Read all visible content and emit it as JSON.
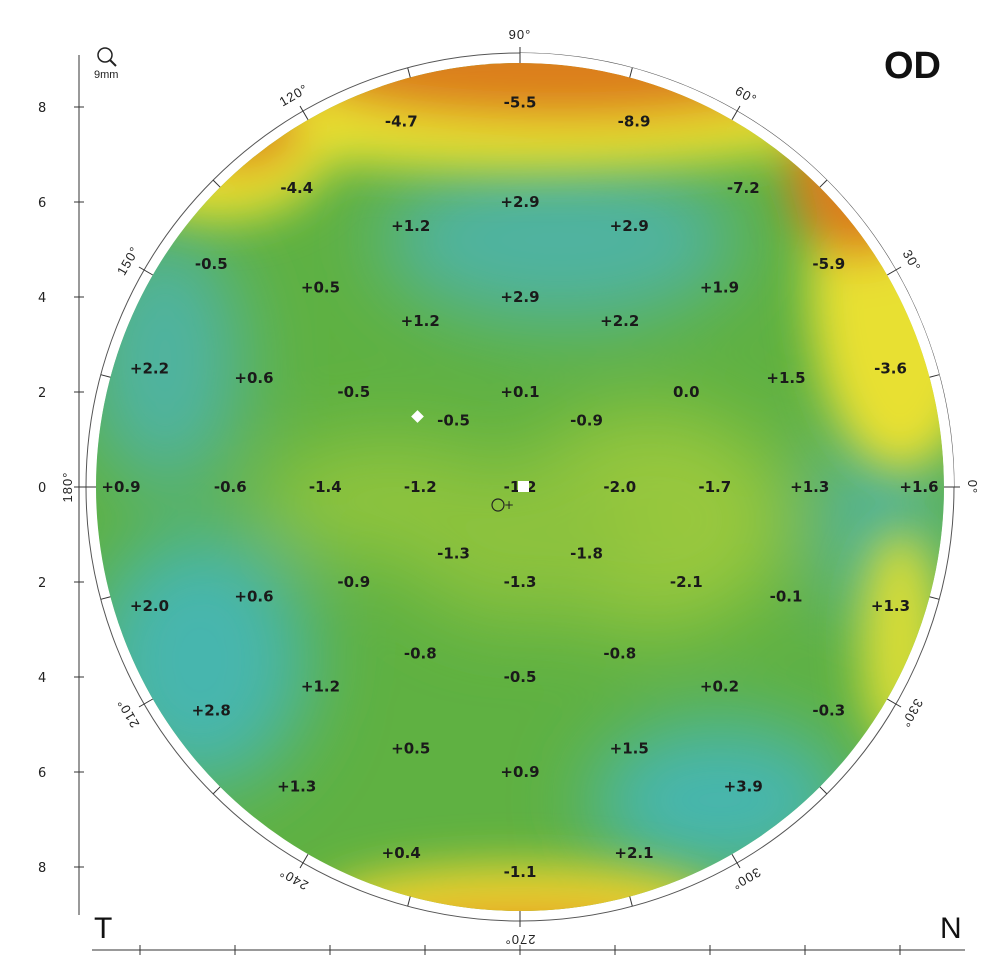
{
  "eye_label": "OD",
  "temporal_label": "T",
  "nasal_label": "N",
  "scale_label": "9mm",
  "degree_labels": [
    "0°",
    "30°",
    "60°",
    "90°",
    "120°",
    "150°",
    "180°",
    "210°",
    "240°",
    "270°",
    "300°",
    "330°"
  ],
  "y_ticks": [
    "8",
    "6",
    "4",
    "2",
    "0",
    "2",
    "4",
    "6",
    "8"
  ],
  "colors": {
    "background": "#ffffff",
    "base_green": "#5fb142",
    "cool_teal": "#4fb8a8",
    "warm_yellow": "#e8e033",
    "hot_orange": "#d9741a",
    "light_green": "#98c83c"
  },
  "chart_data": {
    "type": "heatmap",
    "title": "OD",
    "xlabel": "",
    "ylabel": "",
    "xlim": [
      -9,
      9
    ],
    "ylim": [
      -9,
      9
    ],
    "grid": false,
    "points": [
      {
        "x": 0,
        "y": 8.1,
        "value": "-5.5"
      },
      {
        "x": -2.5,
        "y": 7.7,
        "value": "-4.7"
      },
      {
        "x": 2.4,
        "y": 7.7,
        "value": "-8.9"
      },
      {
        "x": -4.7,
        "y": 6.3,
        "value": "-4.4"
      },
      {
        "x": 4.7,
        "y": 6.3,
        "value": "-7.2"
      },
      {
        "x": -2.3,
        "y": 5.5,
        "value": "+1.2"
      },
      {
        "x": 0,
        "y": 6.0,
        "value": "+2.9"
      },
      {
        "x": 2.3,
        "y": 5.5,
        "value": "+2.9"
      },
      {
        "x": -6.5,
        "y": 4.7,
        "value": "-0.5"
      },
      {
        "x": 6.5,
        "y": 4.7,
        "value": "-5.9"
      },
      {
        "x": -4.2,
        "y": 4.2,
        "value": "+0.5"
      },
      {
        "x": 4.2,
        "y": 4.2,
        "value": "+1.9"
      },
      {
        "x": 0,
        "y": 4.0,
        "value": "+2.9"
      },
      {
        "x": -2.1,
        "y": 3.5,
        "value": "+1.2"
      },
      {
        "x": 2.1,
        "y": 3.5,
        "value": "+2.2"
      },
      {
        "x": -7.8,
        "y": 2.5,
        "value": "+2.2"
      },
      {
        "x": 7.8,
        "y": 2.5,
        "value": "-3.6"
      },
      {
        "x": -5.6,
        "y": 2.3,
        "value": "+0.6"
      },
      {
        "x": 5.6,
        "y": 2.3,
        "value": "+1.5"
      },
      {
        "x": -3.5,
        "y": 2.0,
        "value": "-0.5"
      },
      {
        "x": 0,
        "y": 2.0,
        "value": "+0.1"
      },
      {
        "x": 3.5,
        "y": 2.0,
        "value": "0.0"
      },
      {
        "x": -1.4,
        "y": 1.4,
        "value": "-0.5"
      },
      {
        "x": 1.4,
        "y": 1.4,
        "value": "-0.9"
      },
      {
        "x": -8.4,
        "y": 0,
        "value": "+0.9"
      },
      {
        "x": -6.1,
        "y": 0,
        "value": "-0.6"
      },
      {
        "x": -4.1,
        "y": 0,
        "value": "-1.4"
      },
      {
        "x": -2.1,
        "y": 0,
        "value": "-1.2"
      },
      {
        "x": 0,
        "y": 0,
        "value": "-1.2"
      },
      {
        "x": 2.1,
        "y": 0,
        "value": "-2.0"
      },
      {
        "x": 4.1,
        "y": 0,
        "value": "-1.7"
      },
      {
        "x": 6.1,
        "y": 0,
        "value": "+1.3"
      },
      {
        "x": 8.4,
        "y": 0,
        "value": "+1.6"
      },
      {
        "x": -1.4,
        "y": -1.4,
        "value": "-1.3"
      },
      {
        "x": 1.4,
        "y": -1.4,
        "value": "-1.8"
      },
      {
        "x": -3.5,
        "y": -2.0,
        "value": "-0.9"
      },
      {
        "x": 0,
        "y": -2.0,
        "value": "-1.3"
      },
      {
        "x": 3.5,
        "y": -2.0,
        "value": "-2.1"
      },
      {
        "x": -5.6,
        "y": -2.3,
        "value": "+0.6"
      },
      {
        "x": 5.6,
        "y": -2.3,
        "value": "-0.1"
      },
      {
        "x": -7.8,
        "y": -2.5,
        "value": "+2.0"
      },
      {
        "x": 7.8,
        "y": -2.5,
        "value": "+1.3"
      },
      {
        "x": -2.1,
        "y": -3.5,
        "value": "-0.8"
      },
      {
        "x": 2.1,
        "y": -3.5,
        "value": "-0.8"
      },
      {
        "x": 0,
        "y": -4.0,
        "value": "-0.5"
      },
      {
        "x": -4.2,
        "y": -4.2,
        "value": "+1.2"
      },
      {
        "x": 4.2,
        "y": -4.2,
        "value": "+0.2"
      },
      {
        "x": -6.5,
        "y": -4.7,
        "value": "+2.8"
      },
      {
        "x": 6.5,
        "y": -4.7,
        "value": "-0.3"
      },
      {
        "x": -2.3,
        "y": -5.5,
        "value": "+0.5"
      },
      {
        "x": 2.3,
        "y": -5.5,
        "value": "+1.5"
      },
      {
        "x": 0,
        "y": -6.0,
        "value": "+0.9"
      },
      {
        "x": -4.7,
        "y": -6.3,
        "value": "+1.3"
      },
      {
        "x": 4.7,
        "y": -6.3,
        "value": "+3.9"
      },
      {
        "x": -2.5,
        "y": -7.7,
        "value": "+0.4"
      },
      {
        "x": 2.4,
        "y": -7.7,
        "value": "+2.1"
      },
      {
        "x": 0,
        "y": -8.1,
        "value": "-1.1"
      }
    ]
  }
}
